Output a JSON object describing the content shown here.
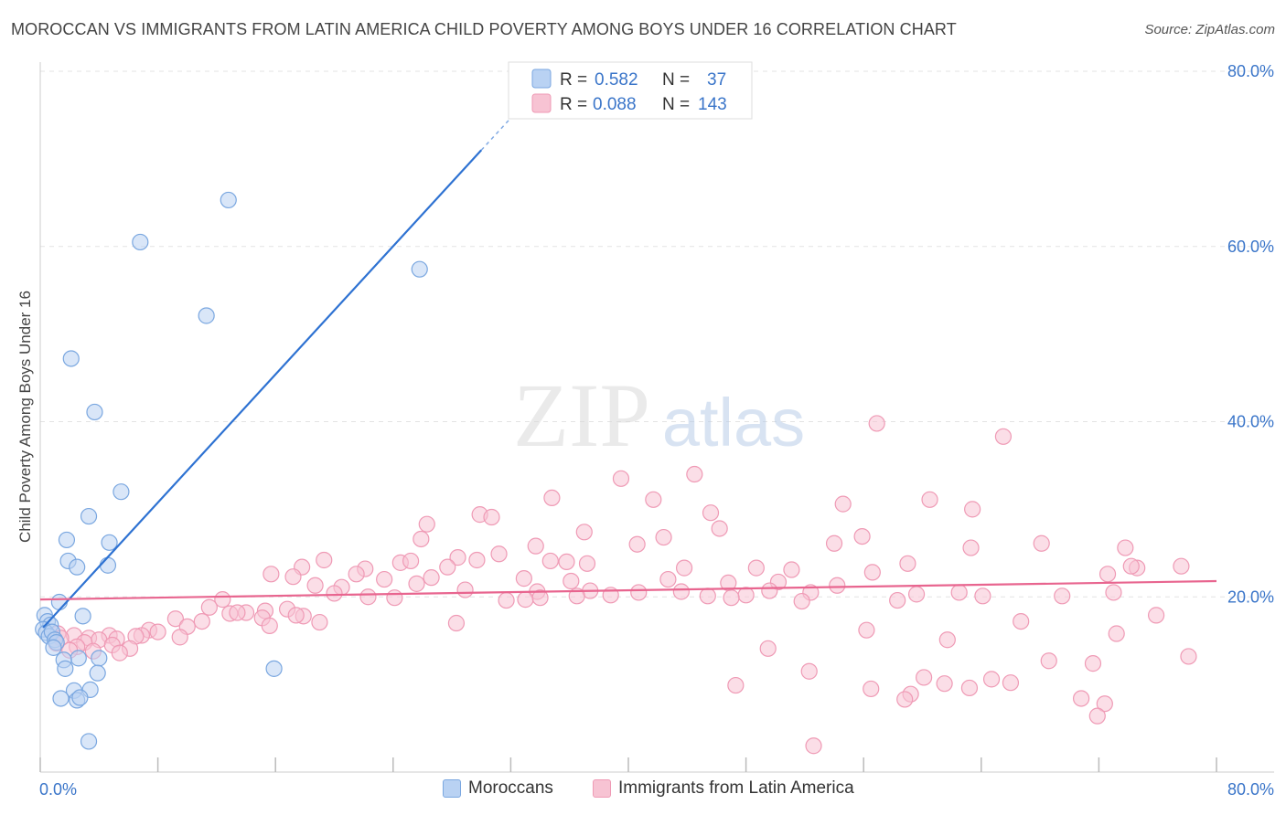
{
  "title": "MOROCCAN VS IMMIGRANTS FROM LATIN AMERICA CHILD POVERTY AMONG BOYS UNDER 16 CORRELATION CHART",
  "source": "Source: ZipAtlas.com",
  "watermark": {
    "zip": "ZIP",
    "atlas": "atlas"
  },
  "chart_data": {
    "type": "scatter",
    "xlabel": "",
    "ylabel": "Child Poverty Among Boys Under 16",
    "xlim": [
      0,
      80
    ],
    "ylim": [
      0,
      80
    ],
    "x_tick_labels": {
      "left": "0.0%",
      "right": "80.0%"
    },
    "y_ticks": [
      {
        "value": 20,
        "label": "20.0%"
      },
      {
        "value": 40,
        "label": "40.0%"
      },
      {
        "value": 60,
        "label": "60.0%"
      },
      {
        "value": 80,
        "label": "80.0%"
      }
    ],
    "grid": true,
    "legend_stats": [
      {
        "series": "Moroccans",
        "r_label": "R =",
        "r": "0.582",
        "n_label": "N =",
        "n": "37"
      },
      {
        "series": "Immigrants from Latin America",
        "r_label": "R =",
        "r": "0.088",
        "n_label": "N =",
        "n": "143"
      }
    ],
    "series": [
      {
        "name": "Moroccans",
        "color": "#7aa7e0",
        "fill": "#b9d2f3",
        "line_color": "#2e72d2",
        "trend": {
          "x1": 0.2,
          "y1": 16.5,
          "x2": 30.0,
          "y2": 71.0,
          "dash_to_x": 32.0
        },
        "points": [
          [
            12.8,
            65.3
          ],
          [
            6.8,
            60.5
          ],
          [
            25.8,
            57.4
          ],
          [
            11.3,
            52.1
          ],
          [
            2.1,
            47.2
          ],
          [
            3.7,
            41.1
          ],
          [
            5.5,
            32.0
          ],
          [
            3.3,
            29.2
          ],
          [
            1.8,
            26.5
          ],
          [
            4.7,
            26.2
          ],
          [
            1.9,
            24.1
          ],
          [
            2.5,
            23.4
          ],
          [
            4.6,
            23.6
          ],
          [
            1.3,
            19.4
          ],
          [
            2.9,
            17.8
          ],
          [
            0.3,
            17.9
          ],
          [
            0.5,
            17.2
          ],
          [
            0.7,
            16.8
          ],
          [
            0.2,
            16.3
          ],
          [
            0.4,
            15.9
          ],
          [
            0.6,
            15.5
          ],
          [
            0.8,
            16.0
          ],
          [
            1.0,
            15.1
          ],
          [
            1.1,
            14.8
          ],
          [
            0.9,
            14.2
          ],
          [
            2.6,
            13.0
          ],
          [
            4.0,
            13.0
          ],
          [
            1.6,
            12.8
          ],
          [
            1.7,
            11.8
          ],
          [
            3.9,
            11.3
          ],
          [
            15.9,
            11.8
          ],
          [
            2.3,
            9.3
          ],
          [
            3.4,
            9.4
          ],
          [
            1.4,
            8.4
          ],
          [
            2.5,
            8.2
          ],
          [
            2.7,
            8.5
          ],
          [
            3.3,
            3.5
          ]
        ]
      },
      {
        "name": "Immigrants from Latin America",
        "color": "#ef9ab5",
        "fill": "#f7c3d3",
        "line_color": "#e8658f",
        "trend": {
          "x1": 0,
          "y1": 19.7,
          "x2": 80,
          "y2": 21.8
        },
        "points": [
          [
            56.9,
            39.8
          ],
          [
            65.5,
            38.3
          ],
          [
            39.5,
            33.5
          ],
          [
            44.5,
            34.0
          ],
          [
            34.8,
            31.3
          ],
          [
            41.7,
            31.1
          ],
          [
            54.6,
            30.6
          ],
          [
            60.5,
            31.1
          ],
          [
            63.4,
            30.0
          ],
          [
            29.9,
            29.4
          ],
          [
            30.7,
            29.1
          ],
          [
            45.6,
            29.6
          ],
          [
            26.3,
            28.3
          ],
          [
            37.0,
            27.4
          ],
          [
            46.2,
            27.8
          ],
          [
            25.9,
            26.6
          ],
          [
            42.4,
            26.8
          ],
          [
            40.6,
            26.0
          ],
          [
            33.7,
            25.8
          ],
          [
            54.0,
            26.1
          ],
          [
            55.9,
            26.9
          ],
          [
            63.3,
            25.6
          ],
          [
            68.1,
            26.1
          ],
          [
            73.8,
            25.6
          ],
          [
            31.2,
            24.9
          ],
          [
            28.4,
            24.5
          ],
          [
            29.7,
            24.2
          ],
          [
            34.7,
            24.1
          ],
          [
            37.2,
            23.8
          ],
          [
            59.0,
            23.8
          ],
          [
            74.6,
            23.3
          ],
          [
            74.2,
            23.5
          ],
          [
            77.6,
            23.5
          ],
          [
            17.8,
            23.4
          ],
          [
            19.3,
            24.2
          ],
          [
            22.1,
            23.2
          ],
          [
            24.5,
            23.9
          ],
          [
            25.2,
            24.1
          ],
          [
            27.7,
            23.4
          ],
          [
            35.8,
            24.0
          ],
          [
            43.8,
            23.3
          ],
          [
            48.7,
            23.3
          ],
          [
            51.1,
            23.1
          ],
          [
            56.6,
            22.8
          ],
          [
            72.6,
            22.6
          ],
          [
            15.7,
            22.6
          ],
          [
            17.2,
            22.3
          ],
          [
            21.5,
            22.6
          ],
          [
            23.4,
            22.0
          ],
          [
            26.6,
            22.2
          ],
          [
            32.9,
            22.1
          ],
          [
            36.1,
            21.8
          ],
          [
            42.7,
            22.0
          ],
          [
            46.8,
            21.6
          ],
          [
            50.2,
            21.7
          ],
          [
            54.2,
            21.3
          ],
          [
            18.7,
            21.3
          ],
          [
            20.5,
            21.1
          ],
          [
            25.6,
            21.5
          ],
          [
            28.9,
            20.8
          ],
          [
            33.8,
            20.6
          ],
          [
            37.4,
            20.7
          ],
          [
            40.7,
            20.5
          ],
          [
            43.6,
            20.6
          ],
          [
            48.0,
            20.2
          ],
          [
            49.6,
            20.7
          ],
          [
            52.4,
            20.5
          ],
          [
            59.6,
            20.3
          ],
          [
            64.1,
            20.1
          ],
          [
            73.0,
            20.5
          ],
          [
            20.0,
            20.4
          ],
          [
            22.3,
            20.0
          ],
          [
            24.1,
            19.9
          ],
          [
            12.4,
            19.7
          ],
          [
            33.0,
            19.7
          ],
          [
            34.0,
            19.9
          ],
          [
            31.7,
            19.6
          ],
          [
            36.5,
            20.1
          ],
          [
            38.8,
            20.2
          ],
          [
            45.4,
            20.1
          ],
          [
            47.0,
            19.9
          ],
          [
            51.8,
            19.5
          ],
          [
            58.3,
            19.6
          ],
          [
            62.5,
            20.5
          ],
          [
            69.5,
            20.1
          ],
          [
            11.5,
            18.8
          ],
          [
            14.0,
            18.2
          ],
          [
            15.3,
            18.4
          ],
          [
            16.8,
            18.6
          ],
          [
            17.9,
            17.8
          ],
          [
            12.9,
            18.1
          ],
          [
            13.4,
            18.2
          ],
          [
            9.2,
            17.5
          ],
          [
            11.0,
            17.2
          ],
          [
            15.1,
            17.6
          ],
          [
            17.4,
            17.9
          ],
          [
            10.0,
            16.6
          ],
          [
            15.6,
            16.7
          ],
          [
            19.0,
            17.1
          ],
          [
            28.3,
            17.0
          ],
          [
            7.4,
            16.2
          ],
          [
            8.0,
            16.0
          ],
          [
            9.5,
            15.4
          ],
          [
            6.9,
            15.6
          ],
          [
            2.3,
            15.6
          ],
          [
            3.3,
            15.3
          ],
          [
            4.7,
            15.6
          ],
          [
            5.2,
            15.2
          ],
          [
            6.5,
            15.5
          ],
          [
            4.0,
            15.1
          ],
          [
            1.2,
            15.8
          ],
          [
            1.4,
            15.3
          ],
          [
            1.1,
            14.7
          ],
          [
            3.0,
            14.8
          ],
          [
            4.9,
            14.5
          ],
          [
            2.5,
            14.3
          ],
          [
            6.1,
            14.1
          ],
          [
            3.6,
            13.8
          ],
          [
            5.4,
            13.6
          ],
          [
            2.0,
            13.9
          ],
          [
            56.2,
            16.2
          ],
          [
            61.7,
            15.1
          ],
          [
            66.7,
            17.2
          ],
          [
            73.2,
            15.8
          ],
          [
            75.9,
            17.9
          ],
          [
            49.5,
            14.1
          ],
          [
            52.3,
            11.5
          ],
          [
            68.6,
            12.7
          ],
          [
            71.6,
            12.4
          ],
          [
            78.1,
            13.2
          ],
          [
            60.1,
            10.8
          ],
          [
            61.5,
            10.1
          ],
          [
            63.2,
            9.6
          ],
          [
            64.7,
            10.6
          ],
          [
            66.0,
            10.2
          ],
          [
            47.3,
            9.9
          ],
          [
            56.5,
            9.5
          ],
          [
            59.2,
            8.9
          ],
          [
            70.8,
            8.4
          ],
          [
            72.4,
            7.8
          ],
          [
            58.8,
            8.3
          ],
          [
            71.9,
            6.4
          ],
          [
            52.6,
            3.0
          ]
        ]
      }
    ]
  }
}
